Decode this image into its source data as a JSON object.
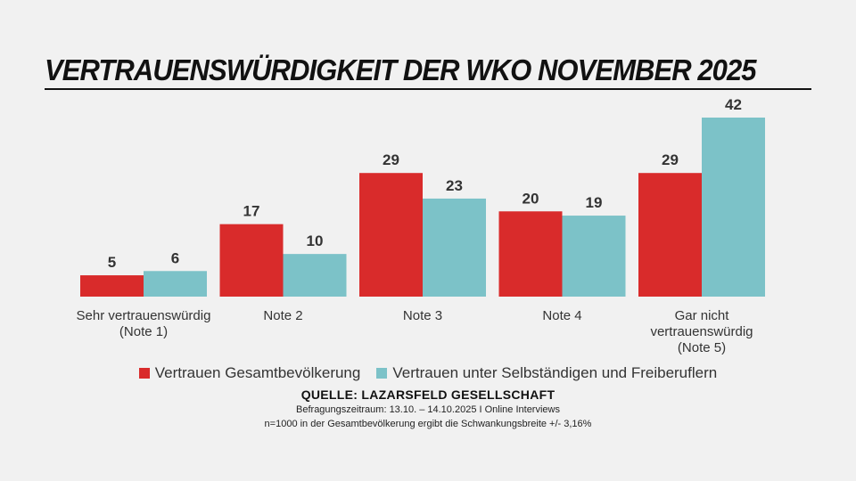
{
  "title": "VERTRAUENSWÜRDIGKEIT DER WKO NOVEMBER 2025",
  "colors": {
    "series1": "#d92b2b",
    "series2": "#7cc2c8",
    "text": "#333333",
    "background": "#f1f1f1"
  },
  "chart_data": {
    "type": "bar",
    "title": "VERTRAUENSWÜRDIGKEIT DER WKO NOVEMBER 2025",
    "categories": [
      [
        "Sehr vertrauenswürdig",
        "(Note 1)"
      ],
      [
        "Note 2"
      ],
      [
        "Note 3"
      ],
      [
        "Note 4"
      ],
      [
        "Gar nicht",
        "vertrauenswürdig",
        "(Note 5)"
      ]
    ],
    "series": [
      {
        "name": "Vertrauen Gesamtbevölkerung",
        "values": [
          5,
          17,
          29,
          20,
          29
        ]
      },
      {
        "name": "Vertrauen unter Selbständigen und Freiberuflern",
        "values": [
          6,
          10,
          23,
          19,
          42
        ]
      }
    ],
    "ylim": [
      0,
      42
    ],
    "xlabel": "",
    "ylabel": "",
    "grid": false,
    "legend_position": "bottom"
  },
  "source": "QUELLE: LAZARSFELD GESELLSCHAFT",
  "notes": [
    "Befragungszeitraum: 13.10. – 14.10.2025 I Online Interviews",
    "n=1000 in der Gesamtbevölkerung ergibt die Schwankungsbreite +/- 3,16%"
  ]
}
